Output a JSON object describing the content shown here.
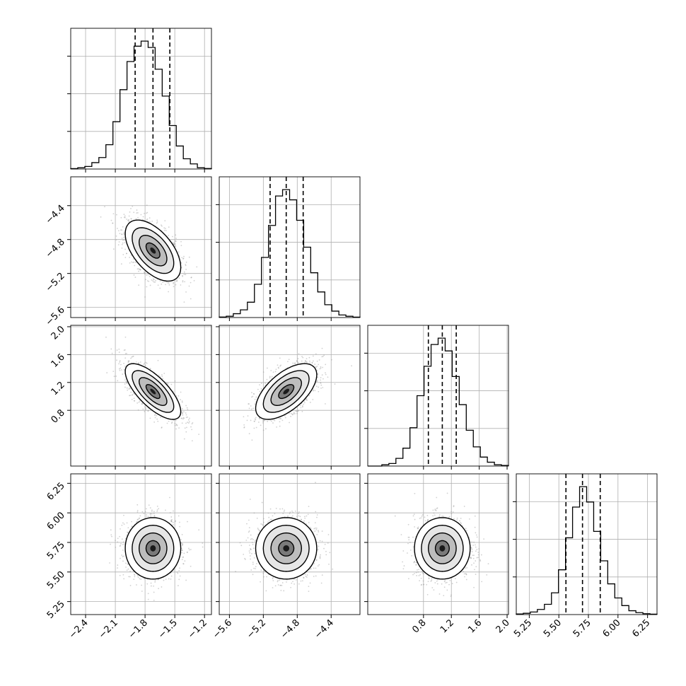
{
  "chart_data": {
    "type": "corner",
    "variables": [
      {
        "range": [
          -2.55,
          -1.13
        ],
        "ticks": [
          -2.4,
          -2.1,
          -1.8,
          -1.5,
          -1.2
        ],
        "tick_labels": [
          "−2.4",
          "−2.1",
          "−1.8",
          "−1.5",
          "−1.2"
        ],
        "mean": -1.72,
        "sd": 0.14,
        "quantiles": [
          -1.9,
          -1.72,
          -1.55
        ],
        "hist": [
          0.3,
          1,
          2,
          5,
          9,
          19,
          37,
          62,
          84,
          96,
          100,
          95,
          78,
          57,
          34,
          18,
          8,
          4,
          1,
          0.4
        ]
      },
      {
        "range": [
          -5.72,
          -4.06
        ],
        "ticks": [
          -5.6,
          -5.2,
          -4.8,
          -4.4
        ],
        "tick_labels": [
          "−5.6",
          "−5.2",
          "−4.8",
          "−4.4"
        ],
        "mean": -4.93,
        "sd": 0.18,
        "quantiles": [
          -5.12,
          -4.93,
          -4.73
        ],
        "hist": [
          0.4,
          1,
          3,
          6,
          12,
          26,
          47,
          72,
          95,
          100,
          92,
          76,
          55,
          35,
          20,
          10,
          5,
          2,
          1,
          0.3
        ]
      },
      {
        "range": [
          0.0,
          2.02
        ],
        "ticks": [
          0.8,
          1.2,
          1.6,
          2.0
        ],
        "tick_labels": [
          "0.8",
          "1.2",
          "1.6",
          "2.0"
        ],
        "mean": 1.07,
        "sd": 0.2,
        "quantiles": [
          0.87,
          1.07,
          1.27
        ],
        "hist": [
          0,
          0,
          1,
          2,
          6,
          14,
          30,
          55,
          78,
          95,
          100,
          90,
          70,
          48,
          28,
          15,
          7,
          3,
          1,
          0.5
        ]
      },
      {
        "range": [
          5.14,
          6.33
        ],
        "ticks": [
          5.25,
          5.5,
          5.75,
          6.0,
          6.25
        ],
        "tick_labels": [
          "5.25",
          "5.50",
          "5.75",
          "6.00",
          "6.25"
        ],
        "mean": 5.7,
        "sd": 0.13,
        "quantiles": [
          5.56,
          5.7,
          5.85
        ],
        "hist": [
          0.5,
          1,
          2,
          4,
          8,
          17,
          35,
          60,
          84,
          100,
          88,
          65,
          42,
          24,
          13,
          7,
          3,
          1.5,
          0.7,
          0.3
        ]
      }
    ],
    "correlations": [
      [
        1.0,
        -0.55,
        -0.72,
        0.0
      ],
      [
        -0.55,
        1.0,
        0.6,
        0.0
      ],
      [
        -0.72,
        0.6,
        1.0,
        0.0
      ],
      [
        0.0,
        0.0,
        0.0,
        1.0
      ]
    ],
    "contour_levels_sigma": [
      0.5,
      1.0,
      1.5,
      2.0
    ],
    "grid": true,
    "xlabel": "",
    "ylabel": "",
    "title": ""
  }
}
